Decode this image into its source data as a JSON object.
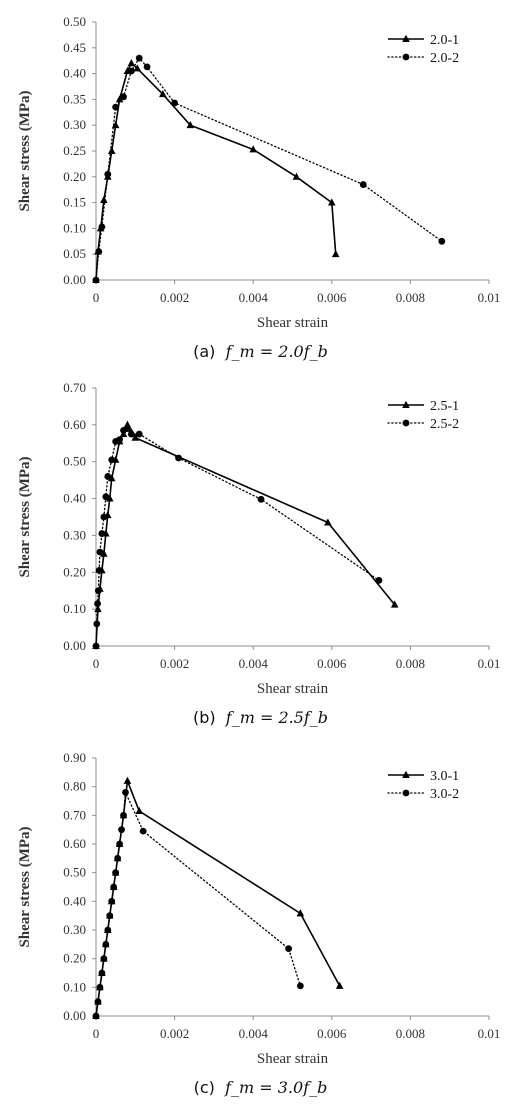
{
  "chart_data": [
    {
      "type": "line",
      "xlabel": "Shear strain",
      "ylabel": "Shear stress (MPa)",
      "xlim": [
        0,
        0.01
      ],
      "ylim": [
        0,
        0.5
      ],
      "xticks": [
        "0",
        "0.002",
        "0.004",
        "0.006",
        "0.008",
        "0.01"
      ],
      "yticks": [
        "0.00",
        "0.05",
        "0.10",
        "0.15",
        "0.20",
        "0.25",
        "0.30",
        "0.35",
        "0.40",
        "0.45",
        "0.50"
      ],
      "xtick_values": [
        0,
        0.002,
        0.004,
        0.006,
        0.008,
        0.01
      ],
      "ytick_values": [
        0,
        0.05,
        0.1,
        0.15,
        0.2,
        0.25,
        0.3,
        0.35,
        0.4,
        0.45,
        0.5
      ],
      "grid": false,
      "legend_position": "top-right",
      "caption_label": "(a)",
      "caption_math": "f_m = 2.0f_b",
      "series": [
        {
          "name": "2.0-1",
          "marker": "triangle",
          "line_style": "solid",
          "x": [
            0,
            5e-05,
            0.00012,
            0.0002,
            0.0003,
            0.0004,
            0.0005,
            0.0006,
            0.0008,
            0.0009,
            0.00105,
            0.0017,
            0.0024,
            0.004,
            0.0051,
            0.006,
            0.0061
          ],
          "y": [
            0,
            0.055,
            0.1,
            0.155,
            0.2,
            0.25,
            0.3,
            0.35,
            0.405,
            0.42,
            0.41,
            0.36,
            0.3,
            0.253,
            0.2,
            0.15,
            0.05
          ]
        },
        {
          "name": "2.0-2",
          "marker": "circle",
          "line_style": "dotted",
          "x": [
            0,
            7e-05,
            0.00015,
            0.0003,
            0.0005,
            0.0007,
            0.0009,
            0.0011,
            0.0013,
            0.002,
            0.0068,
            0.0088
          ],
          "y": [
            0,
            0.055,
            0.103,
            0.205,
            0.335,
            0.355,
            0.405,
            0.43,
            0.413,
            0.343,
            0.185,
            0.075
          ]
        }
      ]
    },
    {
      "type": "line",
      "xlabel": "Shear strain",
      "ylabel": "Shear stress (MPa)",
      "xlim": [
        0,
        0.01
      ],
      "ylim": [
        0,
        0.7
      ],
      "xticks": [
        "0",
        "0.002",
        "0.004",
        "0.006",
        "0.008",
        "0.01"
      ],
      "yticks": [
        "0.00",
        "0.10",
        "0.20",
        "0.30",
        "0.40",
        "0.50",
        "0.60",
        "0.70"
      ],
      "xtick_values": [
        0,
        0.002,
        0.004,
        0.006,
        0.008,
        0.01
      ],
      "ytick_values": [
        0,
        0.1,
        0.2,
        0.3,
        0.4,
        0.5,
        0.6,
        0.7
      ],
      "grid": false,
      "legend_position": "top-right",
      "caption_label": "(b)",
      "caption_math": "f_m = 2.5f_b",
      "series": [
        {
          "name": "2.5-1",
          "marker": "triangle",
          "line_style": "solid",
          "x": [
            0,
            5e-05,
            0.0001,
            0.00015,
            0.0002,
            0.00025,
            0.0003,
            0.00035,
            0.0004,
            0.0005,
            0.0006,
            0.0007,
            0.0008,
            0.0009,
            0.001,
            0.0059,
            0.0076
          ],
          "y": [
            0,
            0.1,
            0.155,
            0.205,
            0.25,
            0.305,
            0.355,
            0.4,
            0.455,
            0.505,
            0.555,
            0.575,
            0.6,
            0.58,
            0.565,
            0.335,
            0.112
          ]
        },
        {
          "name": "2.5-2",
          "marker": "circle",
          "line_style": "dotted",
          "x": [
            0,
            2e-05,
            4e-05,
            6e-05,
            8e-05,
            0.0001,
            0.00015,
            0.0002,
            0.00025,
            0.0003,
            0.0004,
            0.0005,
            0.0006,
            0.0007,
            0.0008,
            0.0009,
            0.0011,
            0.0021,
            0.0042,
            0.0072
          ],
          "y": [
            0,
            0.06,
            0.115,
            0.15,
            0.205,
            0.255,
            0.305,
            0.35,
            0.405,
            0.46,
            0.505,
            0.555,
            0.56,
            0.585,
            0.59,
            0.575,
            0.575,
            0.51,
            0.398,
            0.178
          ]
        }
      ]
    },
    {
      "type": "line",
      "xlabel": "Shear strain",
      "ylabel": "Shear stress (MPa)",
      "xlim": [
        0,
        0.01
      ],
      "ylim": [
        0,
        0.9
      ],
      "xticks": [
        "0",
        "0.002",
        "0.004",
        "0.006",
        "0.008",
        "0.01"
      ],
      "yticks": [
        "0.00",
        "0.10",
        "0.20",
        "0.30",
        "0.40",
        "0.50",
        "0.60",
        "0.70",
        "0.80",
        "0.90"
      ],
      "xtick_values": [
        0,
        0.002,
        0.004,
        0.006,
        0.008,
        0.01
      ],
      "ytick_values": [
        0,
        0.1,
        0.2,
        0.3,
        0.4,
        0.5,
        0.6,
        0.7,
        0.8,
        0.9
      ],
      "grid": false,
      "legend_position": "top-right",
      "caption_label": "(c)",
      "caption_math": "f_m = 3.0f_b",
      "series": [
        {
          "name": "3.0-1",
          "marker": "triangle",
          "line_style": "solid",
          "x": [
            0,
            5e-05,
            0.0001,
            0.00015,
            0.0002,
            0.00025,
            0.0003,
            0.00035,
            0.0004,
            0.00045,
            0.0005,
            0.00055,
            0.0006,
            0.0007,
            0.0008,
            0.0011,
            0.0052,
            0.0062
          ],
          "y": [
            0,
            0.05,
            0.1,
            0.15,
            0.2,
            0.25,
            0.3,
            0.35,
            0.4,
            0.45,
            0.5,
            0.55,
            0.6,
            0.7,
            0.82,
            0.715,
            0.358,
            0.105
          ]
        },
        {
          "name": "3.0-2",
          "marker": "circle",
          "line_style": "dotted",
          "x": [
            0,
            5e-05,
            0.0001,
            0.00015,
            0.0002,
            0.00025,
            0.0003,
            0.00035,
            0.0004,
            0.00045,
            0.0005,
            0.00055,
            0.0006,
            0.00065,
            0.0007,
            0.00075,
            0.0012,
            0.0049,
            0.0052
          ],
          "y": [
            0,
            0.05,
            0.1,
            0.15,
            0.2,
            0.25,
            0.3,
            0.35,
            0.4,
            0.45,
            0.5,
            0.55,
            0.6,
            0.65,
            0.7,
            0.78,
            0.645,
            0.235,
            0.105
          ]
        }
      ]
    }
  ]
}
